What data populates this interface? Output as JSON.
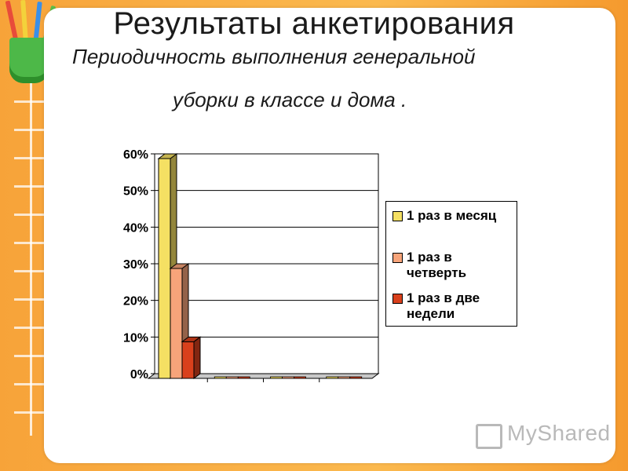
{
  "slide": {
    "title": "Результаты анкетирования",
    "subtitle_line1": "Периодичность выполнения генеральной",
    "subtitle_line2": "уборки в классе и дома ."
  },
  "chart_data": {
    "type": "bar",
    "title": "",
    "xlabel": "",
    "ylabel": "",
    "ylim": [
      0,
      60
    ],
    "yticks": [
      "0%",
      "10%",
      "20%",
      "30%",
      "40%",
      "50%",
      "60%"
    ],
    "tick_values": [
      0,
      10,
      20,
      30,
      40,
      50,
      60
    ],
    "categories": [
      "",
      "",
      "",
      ""
    ],
    "series": [
      {
        "name": "1 раз в месяц",
        "values": [
          60,
          0,
          0,
          0
        ],
        "color": "#f5e063"
      },
      {
        "name": "1 раз в четверть",
        "values": [
          30,
          0,
          0,
          0
        ],
        "color": "#f7a47a"
      },
      {
        "name": "1 раз в две недели",
        "values": [
          10,
          0,
          0,
          0
        ],
        "color": "#d9401c"
      }
    ],
    "grid": true,
    "legend_position": "right",
    "style": "3d-clustered"
  },
  "legend": {
    "items": [
      {
        "label_line1": "1 раз в месяц",
        "label_line2": ""
      },
      {
        "label_line1": "1 раз в",
        "label_line2": "четверть"
      },
      {
        "label_line1": "1 раз в две",
        "label_line2": "недели"
      }
    ]
  },
  "watermark": {
    "text": "MyShared",
    "icon": "presentation-board-icon"
  }
}
